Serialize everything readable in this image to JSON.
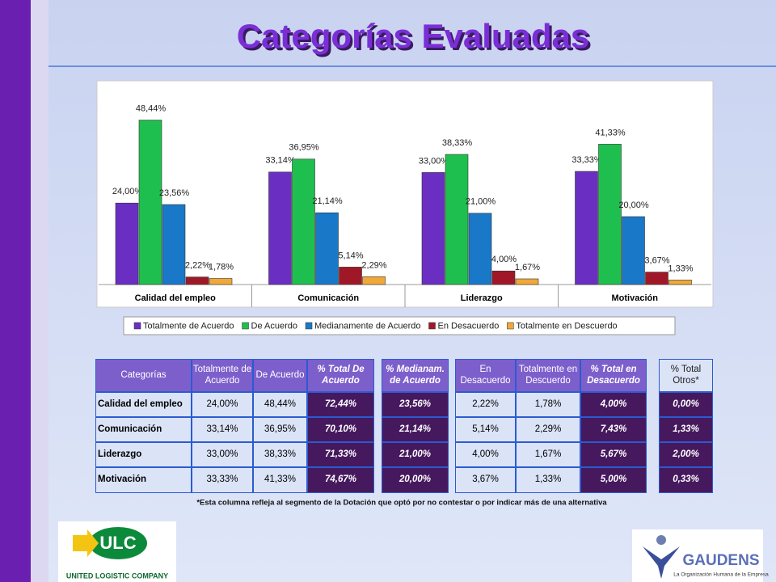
{
  "title": "Categorías Evaluadas",
  "chart_data": {
    "type": "bar",
    "categories": [
      "Calidad del empleo",
      "Comunicación",
      "Liderazgo",
      "Motivación"
    ],
    "series": [
      {
        "name": "Totalmente de Acuerdo",
        "color": "#6a2fc2",
        "values": [
          24.0,
          33.14,
          33.0,
          33.33
        ],
        "value_labels": [
          "24,00%",
          "33,14%",
          "33,00%",
          "33,33%"
        ]
      },
      {
        "name": "De Acuerdo",
        "color": "#1fbf4f",
        "values": [
          48.44,
          36.95,
          38.33,
          41.33
        ],
        "value_labels": [
          "48,44%",
          "36,95%",
          "38,33%",
          "41,33%"
        ]
      },
      {
        "name": "Medianamente de Acuerdo",
        "color": "#1a78c8",
        "values": [
          23.56,
          21.14,
          21.0,
          20.0
        ],
        "value_labels": [
          "23,56%",
          "21,14%",
          "21,00%",
          "20,00%"
        ]
      },
      {
        "name": "En Desacuerdo",
        "color": "#a01828",
        "values": [
          2.22,
          5.14,
          4.0,
          3.67
        ],
        "value_labels": [
          "2,22%",
          "5,14%",
          "4,00%",
          "3,67%"
        ]
      },
      {
        "name": "Totalmente en Descuerdo",
        "color": "#f0a838",
        "values": [
          1.78,
          2.29,
          1.67,
          1.33
        ],
        "value_labels": [
          "1,78%",
          "2,29%",
          "1,67%",
          "1,33%"
        ]
      }
    ],
    "legend": "bottom"
  },
  "table": {
    "header": [
      "Categorías",
      "Totalmente de Acuerdo",
      "De Acuerdo",
      "% Total De Acuerdo",
      "% Medianam. de Acuerdo",
      "En Desacuerdo",
      "Totalmente en Descuerdo",
      "% Total en Desacuerdo",
      "% Total Otros*"
    ],
    "rows": [
      [
        "Calidad del empleo",
        "24,00%",
        "48,44%",
        "72,44%",
        "23,56%",
        "2,22%",
        "1,78%",
        "4,00%",
        "0,00%"
      ],
      [
        "Comunicación",
        "33,14%",
        "36,95%",
        "70,10%",
        "21,14%",
        "5,14%",
        "2,29%",
        "7,43%",
        "1,33%"
      ],
      [
        "Liderazgo",
        "33,00%",
        "38,33%",
        "71,33%",
        "21,00%",
        "4,00%",
        "1,67%",
        "5,67%",
        "2,00%"
      ],
      [
        "Motivación",
        "33,33%",
        "41,33%",
        "74,67%",
        "20,00%",
        "3,67%",
        "1,33%",
        "5,00%",
        "0,33%"
      ]
    ]
  },
  "footnote": "*Esta columna refleja al segmento de la Dotación que optó por no contestar o por indicar más de una alternativa",
  "logos": {
    "left": {
      "mark": "ULC",
      "name": "UNITED LOGISTIC COMPANY"
    },
    "right": {
      "mark": "GAUDENS",
      "tagline": "La Organización Humana de la Empresa"
    }
  }
}
